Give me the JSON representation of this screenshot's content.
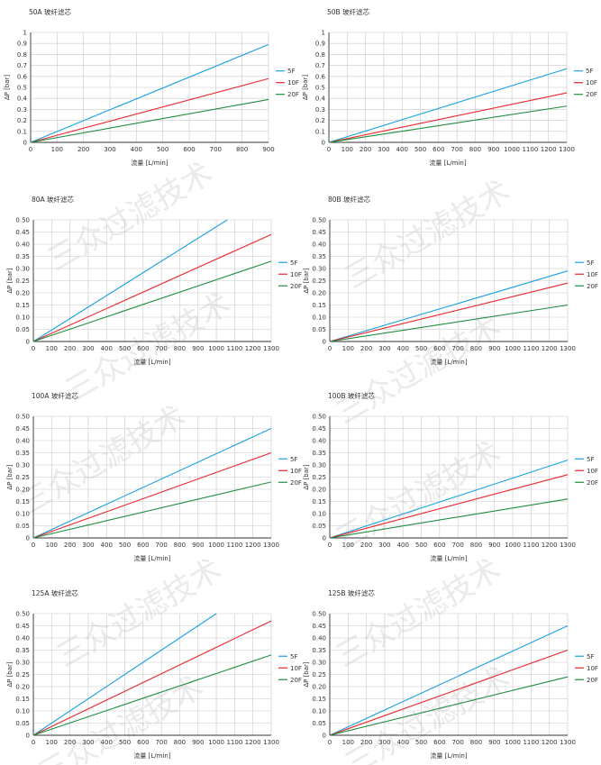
{
  "watermark": {
    "text": "三众过滤技术",
    "color": "#d9d9d9"
  },
  "colors": {
    "5F": "#1ba1e2",
    "10F": "#e8262b",
    "20F": "#1e8e3e",
    "grid": "#c8c8c8",
    "axis": "#333333"
  },
  "chart_data": [
    {
      "type": "line",
      "title": "50A 玻纤滤芯",
      "xlabel": "流量 [L/min]",
      "ylabel": "ΔP [bar]",
      "xlim": [
        0,
        900
      ],
      "ylim": [
        0,
        1
      ],
      "xticks": [
        0,
        100,
        200,
        300,
        400,
        500,
        600,
        700,
        800,
        900
      ],
      "yticks": [
        0,
        0.1,
        0.2,
        0.3,
        0.4,
        0.5,
        0.6,
        0.7,
        0.8,
        0.9,
        1
      ],
      "ytick_labels": [
        "0",
        "0.1",
        "0.2",
        "0.3",
        "0.4",
        "0.5",
        "0.6",
        "0.7",
        "0.8",
        "0.9",
        "1"
      ],
      "grid": true,
      "legend": "right",
      "series": [
        {
          "name": "5F",
          "x": [
            0,
            900
          ],
          "y": [
            0,
            0.89
          ]
        },
        {
          "name": "10F",
          "x": [
            0,
            900
          ],
          "y": [
            0,
            0.58
          ]
        },
        {
          "name": "20F",
          "x": [
            0,
            900
          ],
          "y": [
            0,
            0.39
          ]
        }
      ]
    },
    {
      "type": "line",
      "title": "50B 玻纤滤芯",
      "xlabel": "流量 [L/min]",
      "ylabel": "ΔP [bar]",
      "xlim": [
        0,
        1300
      ],
      "ylim": [
        0,
        1
      ],
      "xticks": [
        0,
        100,
        200,
        300,
        400,
        500,
        600,
        700,
        800,
        900,
        1000,
        1100,
        1200,
        1300
      ],
      "yticks": [
        0,
        0.1,
        0.2,
        0.3,
        0.4,
        0.5,
        0.6,
        0.7,
        0.8,
        0.9,
        1
      ],
      "ytick_labels": [
        "0",
        "0.1",
        "0.2",
        "0.3",
        "0.4",
        "0.5",
        "0.6",
        "0.7",
        "0.8",
        "0.9",
        "1"
      ],
      "grid": true,
      "legend": "right",
      "series": [
        {
          "name": "5F",
          "x": [
            0,
            1300
          ],
          "y": [
            0,
            0.67
          ]
        },
        {
          "name": "10F",
          "x": [
            0,
            1300
          ],
          "y": [
            0,
            0.45
          ]
        },
        {
          "name": "20F",
          "x": [
            0,
            1300
          ],
          "y": [
            0,
            0.33
          ]
        }
      ]
    },
    {
      "type": "line",
      "title": "80A 玻纤滤芯",
      "xlabel": "流量 [L/min]",
      "ylabel": "ΔP [bar]",
      "xlim": [
        0,
        1300
      ],
      "ylim": [
        0,
        0.5
      ],
      "xticks": [
        0,
        100,
        200,
        300,
        400,
        500,
        600,
        700,
        800,
        900,
        1000,
        1100,
        1200,
        1300
      ],
      "yticks": [
        0,
        0.05,
        0.1,
        0.15,
        0.2,
        0.25,
        0.3,
        0.35,
        0.4,
        0.45,
        0.5
      ],
      "ytick_labels": [
        "0",
        "0.05",
        "0.10",
        "0.15",
        "0.20",
        "0.25",
        "0.30",
        "0.35",
        "0.40",
        "0.45",
        "0.50"
      ],
      "grid": true,
      "legend": "right",
      "series": [
        {
          "name": "5F",
          "x": [
            0,
            1060
          ],
          "y": [
            0,
            0.5
          ]
        },
        {
          "name": "10F",
          "x": [
            0,
            1300
          ],
          "y": [
            0,
            0.44
          ]
        },
        {
          "name": "20F",
          "x": [
            0,
            1300
          ],
          "y": [
            0,
            0.33
          ]
        }
      ]
    },
    {
      "type": "line",
      "title": "80B 玻纤滤芯",
      "xlabel": "流量 [L/min]",
      "ylabel": "ΔP [bar]",
      "xlim": [
        0,
        1300
      ],
      "ylim": [
        0,
        0.5
      ],
      "xticks": [
        0,
        100,
        200,
        300,
        400,
        500,
        600,
        700,
        800,
        900,
        1000,
        1100,
        1200,
        1300
      ],
      "yticks": [
        0,
        0.05,
        0.1,
        0.15,
        0.2,
        0.25,
        0.3,
        0.35,
        0.4,
        0.45,
        0.5
      ],
      "ytick_labels": [
        "0",
        "0.05",
        "0.10",
        "0.15",
        "0.20",
        "0.25",
        "0.30",
        "0.35",
        "0.40",
        "0.45",
        "0.50"
      ],
      "grid": true,
      "legend": "right",
      "series": [
        {
          "name": "5F",
          "x": [
            0,
            1300
          ],
          "y": [
            0,
            0.29
          ]
        },
        {
          "name": "10F",
          "x": [
            0,
            1300
          ],
          "y": [
            0,
            0.24
          ]
        },
        {
          "name": "20F",
          "x": [
            0,
            1300
          ],
          "y": [
            0,
            0.15
          ]
        }
      ]
    },
    {
      "type": "line",
      "title": "100A 玻纤滤芯",
      "xlabel": "流量 [L/min]",
      "ylabel": "ΔP [bar]",
      "xlim": [
        0,
        1300
      ],
      "ylim": [
        0,
        0.5
      ],
      "xticks": [
        0,
        100,
        200,
        300,
        400,
        500,
        600,
        700,
        800,
        900,
        1000,
        1100,
        1200,
        1300
      ],
      "yticks": [
        0,
        0.05,
        0.1,
        0.15,
        0.2,
        0.25,
        0.3,
        0.35,
        0.4,
        0.45,
        0.5
      ],
      "ytick_labels": [
        "0",
        "0.05",
        "0.10",
        "0.15",
        "0.20",
        "0.25",
        "0.30",
        "0.35",
        "0.40",
        "0.45",
        "0.50"
      ],
      "grid": true,
      "legend": "right",
      "series": [
        {
          "name": "5F",
          "x": [
            0,
            1300
          ],
          "y": [
            0,
            0.45
          ]
        },
        {
          "name": "10F",
          "x": [
            0,
            1300
          ],
          "y": [
            0,
            0.35
          ]
        },
        {
          "name": "20F",
          "x": [
            0,
            1300
          ],
          "y": [
            0,
            0.23
          ]
        }
      ]
    },
    {
      "type": "line",
      "title": "100B 玻纤滤芯",
      "xlabel": "流量 [L/min]",
      "ylabel": "ΔP [bar]",
      "xlim": [
        0,
        1300
      ],
      "ylim": [
        0,
        0.5
      ],
      "xticks": [
        0,
        100,
        200,
        300,
        400,
        500,
        600,
        700,
        800,
        900,
        1000,
        1100,
        1200,
        1300
      ],
      "yticks": [
        0,
        0.05,
        0.1,
        0.15,
        0.2,
        0.25,
        0.3,
        0.35,
        0.4,
        0.45,
        0.5
      ],
      "ytick_labels": [
        "0",
        "0.05",
        "0.10",
        "0.15",
        "0.20",
        "0.25",
        "0.30",
        "0.35",
        "0.40",
        "0.45",
        "0.50"
      ],
      "grid": true,
      "legend": "right",
      "series": [
        {
          "name": "5F",
          "x": [
            0,
            1300
          ],
          "y": [
            0,
            0.32
          ]
        },
        {
          "name": "10F",
          "x": [
            0,
            1300
          ],
          "y": [
            0,
            0.26
          ]
        },
        {
          "name": "20F",
          "x": [
            0,
            1300
          ],
          "y": [
            0,
            0.16
          ]
        }
      ]
    },
    {
      "type": "line",
      "title": "125A 玻纤滤芯",
      "xlabel": "流量 [L/min]",
      "ylabel": "ΔP [bar]",
      "xlim": [
        0,
        1300
      ],
      "ylim": [
        0,
        0.5
      ],
      "xticks": [
        0,
        100,
        200,
        300,
        400,
        500,
        600,
        700,
        800,
        900,
        1000,
        1100,
        1200,
        1300
      ],
      "yticks": [
        0,
        0.05,
        0.1,
        0.15,
        0.2,
        0.25,
        0.3,
        0.35,
        0.4,
        0.45,
        0.5
      ],
      "ytick_labels": [
        "0",
        "0.05",
        "0.10",
        "0.15",
        "0.20",
        "0.25",
        "0.30",
        "0.35",
        "0.40",
        "0.45",
        "0.50"
      ],
      "grid": true,
      "legend": "right",
      "series": [
        {
          "name": "5F",
          "x": [
            0,
            1000
          ],
          "y": [
            0,
            0.5
          ]
        },
        {
          "name": "10F",
          "x": [
            0,
            1300
          ],
          "y": [
            0,
            0.47
          ]
        },
        {
          "name": "20F",
          "x": [
            0,
            1300
          ],
          "y": [
            0,
            0.33
          ]
        }
      ]
    },
    {
      "type": "line",
      "title": "125B 玻纤滤芯",
      "xlabel": "流量 [L/min]",
      "ylabel": "ΔP [bar]",
      "xlim": [
        0,
        1300
      ],
      "ylim": [
        0,
        0.5
      ],
      "xticks": [
        0,
        100,
        200,
        300,
        400,
        500,
        600,
        700,
        800,
        900,
        1000,
        1100,
        1200,
        1300
      ],
      "yticks": [
        0,
        0.05,
        0.1,
        0.15,
        0.2,
        0.25,
        0.3,
        0.35,
        0.4,
        0.45,
        0.5
      ],
      "ytick_labels": [
        "0",
        "0.05",
        "0.10",
        "0.15",
        "0.20",
        "0.25",
        "0.30",
        "0.35",
        "0.40",
        "0.45",
        "0.50"
      ],
      "grid": true,
      "legend": "right",
      "series": [
        {
          "name": "5F",
          "x": [
            0,
            1300
          ],
          "y": [
            0,
            0.45
          ]
        },
        {
          "name": "10F",
          "x": [
            0,
            1300
          ],
          "y": [
            0,
            0.35
          ]
        },
        {
          "name": "20F",
          "x": [
            0,
            1300
          ],
          "y": [
            0,
            0.24
          ]
        }
      ]
    }
  ]
}
